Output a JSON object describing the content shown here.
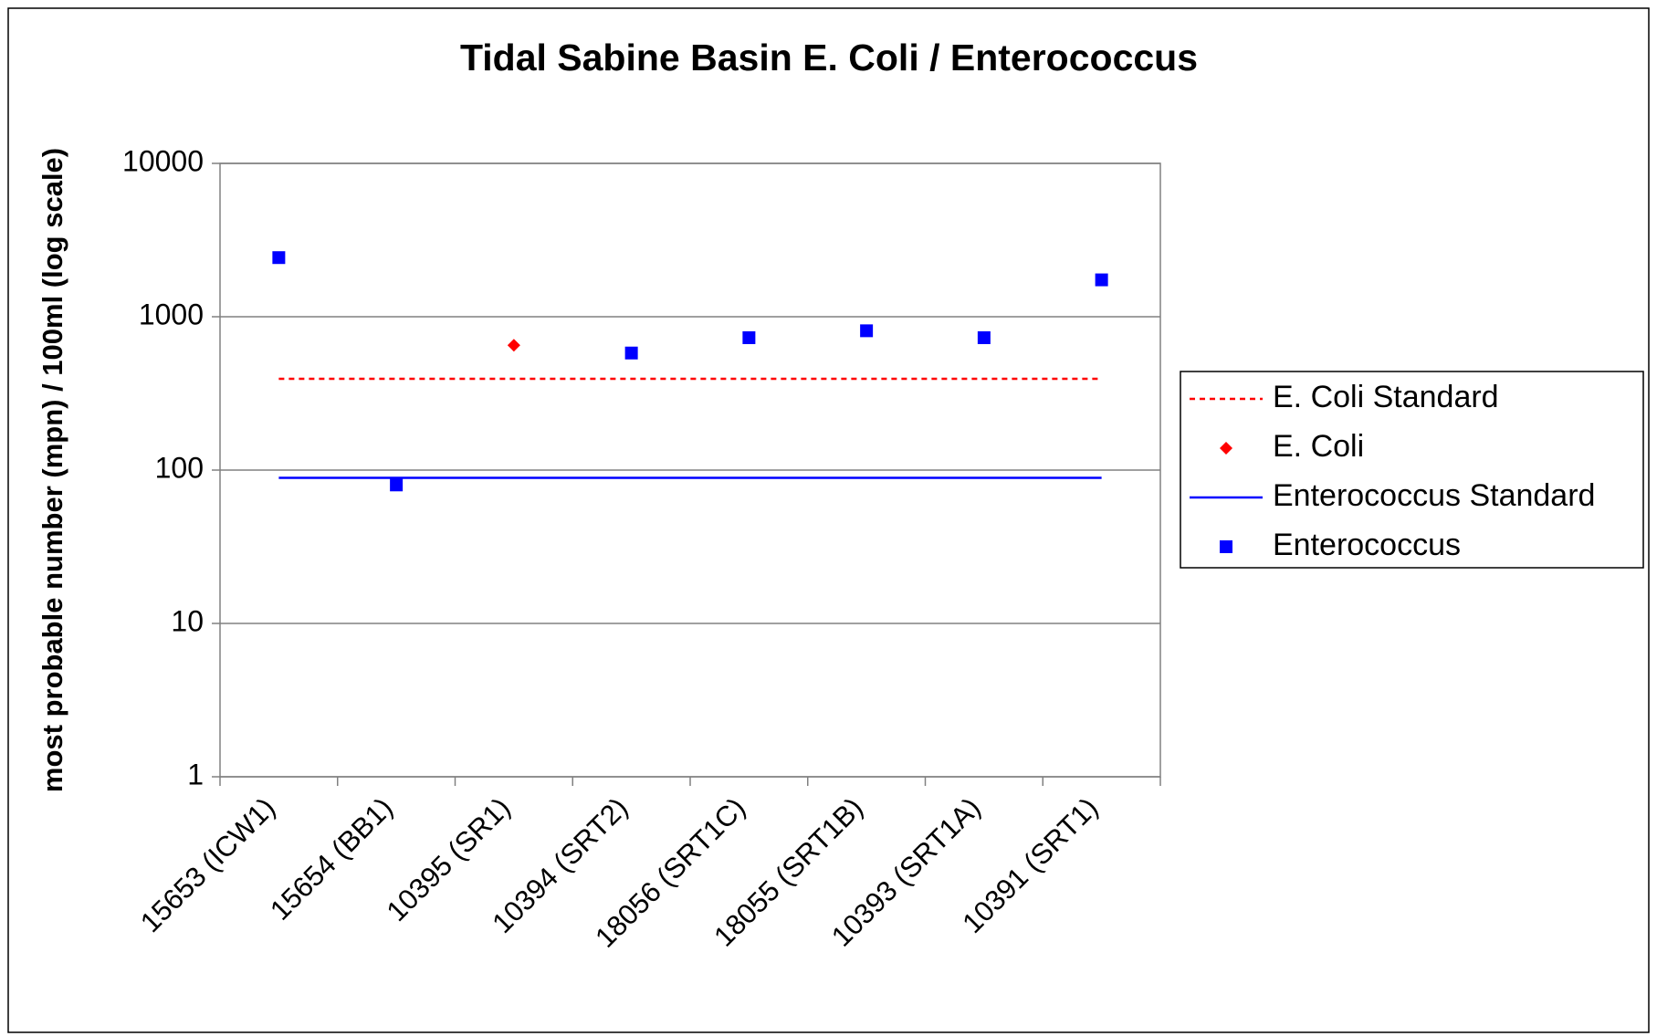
{
  "chart_data": {
    "type": "line",
    "title": "Tidal Sabine Basin E. Coli / Enterococcus",
    "y_label": "most probable number (mpn) / 100ml (log scale)",
    "categories": [
      "15653 (ICW1)",
      "15654 (BB1)",
      "10395 (SR1)",
      "10394 (SRT2)",
      "18056 (SRT1C)",
      "18055 (SRT1B)",
      "10393 (SRT1A)",
      "10391 (SRT1)"
    ],
    "series": [
      {
        "name": "E. Coli Standard",
        "color": "#ff0000",
        "mode": "line",
        "dash": true,
        "values": [
          394,
          394,
          394,
          394,
          394,
          394,
          394,
          394
        ]
      },
      {
        "name": "E. Coli",
        "color": "#ff0000",
        "mode": "marker",
        "marker": "diamond",
        "values": [
          null,
          null,
          652,
          null,
          null,
          null,
          null,
          null
        ]
      },
      {
        "name": "Enterococcus Standard",
        "color": "#0000ff",
        "mode": "line",
        "dash": false,
        "values": [
          89,
          89,
          89,
          89,
          89,
          89,
          89,
          89
        ]
      },
      {
        "name": "Enterococcus",
        "color": "#0000ff",
        "mode": "marker",
        "marker": "square",
        "values": [
          2430,
          80,
          null,
          580,
          730,
          810,
          730,
          1740
        ]
      }
    ],
    "ylim": [
      1,
      10000
    ],
    "yticks": [
      1,
      10,
      100,
      1000,
      10000
    ],
    "log_y": true,
    "grid": true,
    "legend": "right"
  }
}
